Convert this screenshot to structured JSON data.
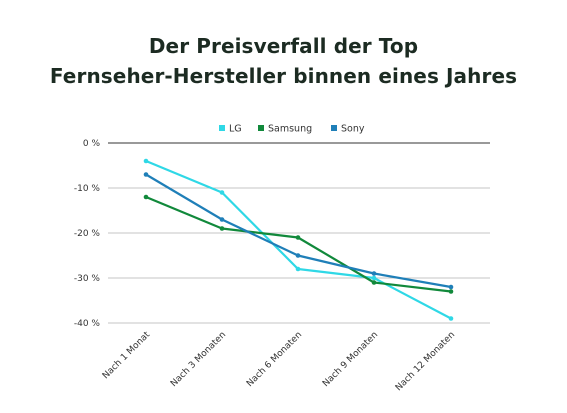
{
  "page": {
    "title_line_1": "Der Preisverfall der Top",
    "title_line_2": "Fernseher-Hersteller binnen eines Jahres"
  },
  "chart_data": {
    "type": "line",
    "title": "Der Preisverfall der Top Fernseher-Hersteller binnen eines Jahres",
    "xlabel": "",
    "ylabel": "",
    "categories": [
      "Nach 1 Monat",
      "Nach 3 Monaten",
      "Nach 6 Monaten",
      "Nach 9 Monaten",
      "Nach 12 Monaten"
    ],
    "y_ticks": [
      0,
      -10,
      -20,
      -30,
      -40
    ],
    "y_tick_labels": [
      "0 %",
      "-10 %",
      "-20 %",
      "-30 %",
      "-40 %"
    ],
    "ylim": [
      -40,
      0
    ],
    "grid": true,
    "legend_position": "top-center",
    "series": [
      {
        "name": "LG",
        "color": "#2fd8e6",
        "values": [
          -4,
          -11,
          -28,
          -30,
          -39
        ]
      },
      {
        "name": "Samsung",
        "color": "#11893b",
        "values": [
          -12,
          -19,
          -21,
          -31,
          -33
        ]
      },
      {
        "name": "Sony",
        "color": "#1f7fb8",
        "values": [
          -7,
          -17,
          -25,
          -29,
          -32
        ]
      }
    ]
  }
}
